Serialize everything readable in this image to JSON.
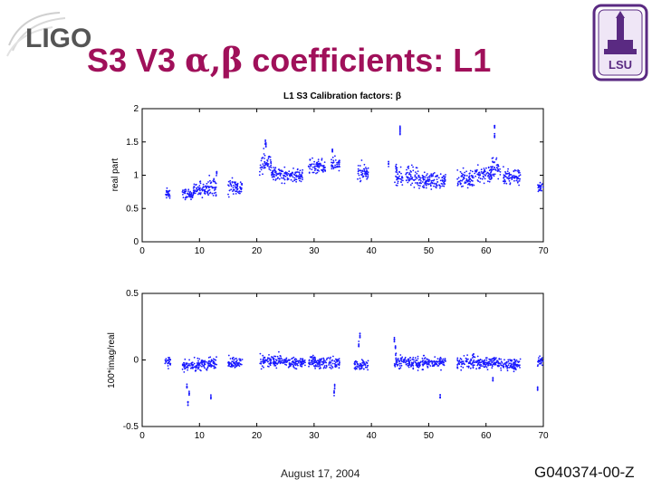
{
  "slide": {
    "title_parts": [
      "S3 V3 ",
      "α,β",
      " coefficients: L1"
    ],
    "title_color": "#a0105a",
    "date": "August 17, 2004",
    "doc_id": "G040374-00-Z",
    "logo_left": "LIGO",
    "logo_right": "LSU"
  },
  "chart_data": [
    {
      "type": "scatter",
      "title": "L1 S3 Calibration factors: β",
      "xlabel": "",
      "ylabel": "real part",
      "xlim": [
        0,
        70
      ],
      "ylim": [
        0,
        2
      ],
      "xticks": [
        0,
        10,
        20,
        30,
        40,
        50,
        60,
        70
      ],
      "yticks": [
        0,
        0.5,
        1,
        1.5,
        2
      ],
      "color": "#1a1aff",
      "series": [
        {
          "segments": [
            {
              "x0": 4.0,
              "x1": 5.0,
              "center": 0.72,
              "spread": 0.08
            },
            {
              "x0": 7.0,
              "x1": 9.0,
              "center": 0.72,
              "spread": 0.08
            },
            {
              "x0": 9.0,
              "x1": 11.5,
              "center": 0.78,
              "spread": 0.12
            },
            {
              "x0": 11.5,
              "x1": 13.0,
              "center": 0.85,
              "spread": 0.15
            },
            {
              "x0": 15.0,
              "x1": 17.5,
              "center": 0.82,
              "spread": 0.14
            },
            {
              "x0": 20.5,
              "x1": 22.5,
              "center": 1.18,
              "spread": 0.18
            },
            {
              "x0": 22.5,
              "x1": 25.0,
              "center": 1.02,
              "spread": 0.12
            },
            {
              "x0": 25.0,
              "x1": 28.0,
              "center": 1.0,
              "spread": 0.1
            },
            {
              "x0": 29.0,
              "x1": 32.0,
              "center": 1.12,
              "spread": 0.12
            },
            {
              "x0": 33.0,
              "x1": 34.5,
              "center": 1.15,
              "spread": 0.12
            },
            {
              "x0": 37.5,
              "x1": 39.5,
              "center": 1.05,
              "spread": 0.15
            },
            {
              "x0": 44.0,
              "x1": 45.5,
              "center": 1.0,
              "spread": 0.18
            },
            {
              "x0": 46.0,
              "x1": 48.0,
              "center": 0.98,
              "spread": 0.15
            },
            {
              "x0": 48.0,
              "x1": 53.0,
              "center": 0.92,
              "spread": 0.12
            },
            {
              "x0": 55.0,
              "x1": 58.0,
              "center": 0.95,
              "spread": 0.15
            },
            {
              "x0": 58.0,
              "x1": 61.0,
              "center": 1.02,
              "spread": 0.15
            },
            {
              "x0": 61.0,
              "x1": 62.5,
              "center": 1.12,
              "spread": 0.18
            },
            {
              "x0": 63.0,
              "x1": 66.0,
              "center": 0.98,
              "spread": 0.14
            },
            {
              "x0": 69.0,
              "x1": 70.0,
              "center": 0.82,
              "spread": 0.07
            }
          ],
          "outliers": [
            [
              43.0,
              1.17
            ],
            [
              45.0,
              1.72
            ],
            [
              45.0,
              1.65
            ],
            [
              61.5,
              1.75
            ],
            [
              61.5,
              1.6
            ],
            [
              21.5,
              1.5
            ],
            [
              21.6,
              1.45
            ],
            [
              33.2,
              1.38
            ],
            [
              13.0,
              1.02
            ]
          ]
        }
      ]
    },
    {
      "type": "scatter",
      "title": "",
      "xlabel": "",
      "ylabel": "100*imag/real",
      "xlim": [
        0,
        70
      ],
      "ylim": [
        -0.5,
        0.5
      ],
      "xticks": [
        0,
        10,
        20,
        30,
        40,
        50,
        60,
        70
      ],
      "yticks": [
        -0.5,
        0,
        0.5
      ],
      "color": "#1a1aff",
      "series": [
        {
          "segments": [
            {
              "x0": 4.0,
              "x1": 5.0,
              "center": -0.02,
              "spread": 0.04
            },
            {
              "x0": 7.0,
              "x1": 9.0,
              "center": -0.04,
              "spread": 0.04
            },
            {
              "x0": 9.0,
              "x1": 13.0,
              "center": -0.03,
              "spread": 0.05
            },
            {
              "x0": 15.0,
              "x1": 17.5,
              "center": -0.02,
              "spread": 0.04
            },
            {
              "x0": 20.5,
              "x1": 25.0,
              "center": -0.01,
              "spread": 0.05
            },
            {
              "x0": 25.0,
              "x1": 28.5,
              "center": -0.02,
              "spread": 0.04
            },
            {
              "x0": 29.0,
              "x1": 34.5,
              "center": -0.02,
              "spread": 0.05
            },
            {
              "x0": 37.0,
              "x1": 39.5,
              "center": -0.04,
              "spread": 0.05
            },
            {
              "x0": 44.0,
              "x1": 45.5,
              "center": -0.01,
              "spread": 0.06
            },
            {
              "x0": 45.5,
              "x1": 53.0,
              "center": -0.02,
              "spread": 0.05
            },
            {
              "x0": 55.0,
              "x1": 62.0,
              "center": -0.02,
              "spread": 0.05
            },
            {
              "x0": 62.0,
              "x1": 66.0,
              "center": -0.03,
              "spread": 0.05
            },
            {
              "x0": 69.0,
              "x1": 70.0,
              "center": -0.01,
              "spread": 0.04
            }
          ],
          "outliers": [
            [
              8.0,
              -0.33
            ],
            [
              8.2,
              -0.25
            ],
            [
              12.0,
              -0.28
            ],
            [
              33.5,
              -0.25
            ],
            [
              38.0,
              0.18
            ],
            [
              37.8,
              0.12
            ],
            [
              44.0,
              0.15
            ],
            [
              44.2,
              0.1
            ],
            [
              52.0,
              -0.28
            ],
            [
              69.0,
              -0.22
            ],
            [
              61.2,
              -0.15
            ],
            [
              7.8,
              -0.2
            ],
            [
              33.6,
              -0.2
            ]
          ]
        }
      ]
    }
  ]
}
